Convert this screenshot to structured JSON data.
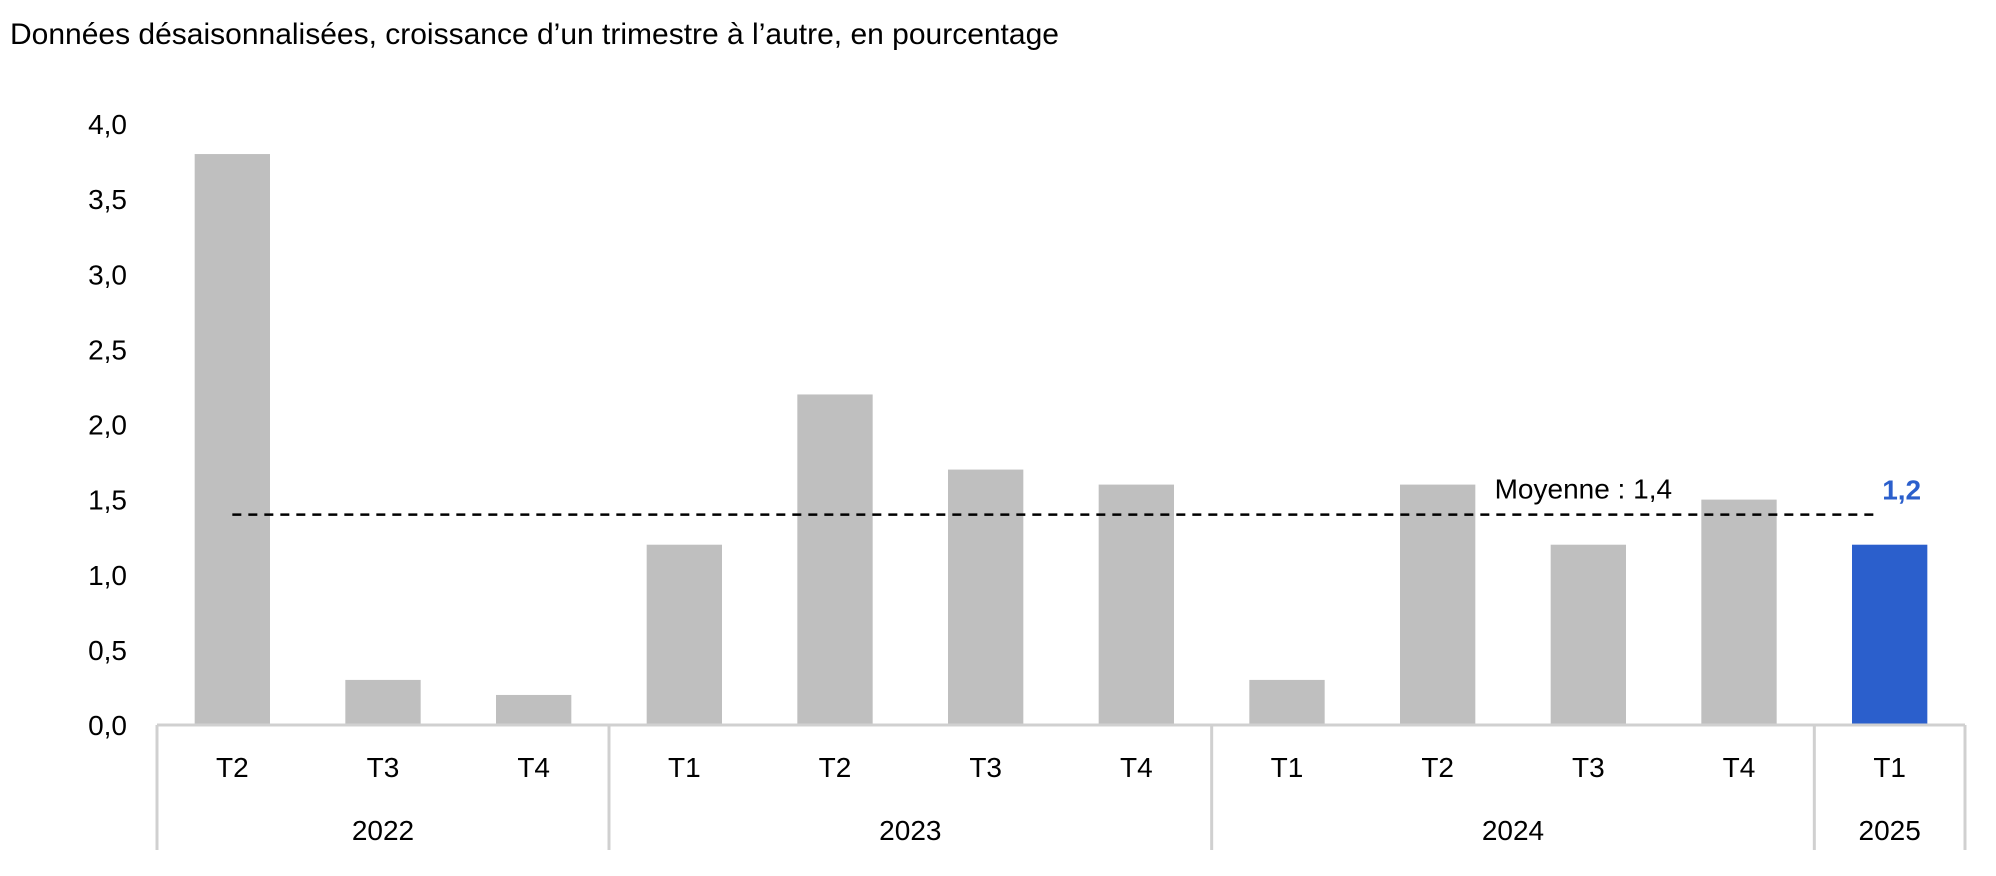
{
  "chart_data": {
    "type": "bar",
    "subtitle": "Données désaisonnalisées, croissance d’un trimestre à l’autre, en pourcentage",
    "categories": [
      "T2",
      "T3",
      "T4",
      "T1",
      "T2",
      "T3",
      "T4",
      "T1",
      "T2",
      "T3",
      "T4",
      "T1"
    ],
    "years": [
      {
        "label": "2022",
        "count": 3
      },
      {
        "label": "2023",
        "count": 4
      },
      {
        "label": "2024",
        "count": 4
      },
      {
        "label": "2025",
        "count": 1
      }
    ],
    "values": [
      3.8,
      0.3,
      0.2,
      1.2,
      2.2,
      1.7,
      1.6,
      0.3,
      1.6,
      1.2,
      1.5,
      1.2
    ],
    "ylim": [
      0,
      4
    ],
    "yticks": [
      0,
      0.5,
      1,
      1.5,
      2,
      2.5,
      3,
      3.5,
      4
    ],
    "ytick_labels": [
      "0,0",
      "0,5",
      "1,0",
      "1,5",
      "2,0",
      "2,5",
      "3,0",
      "3,5",
      "4,0"
    ],
    "average": {
      "value": 1.4,
      "label": "Moyenne : 1,4"
    },
    "highlight": {
      "index": 11,
      "label": "1,2"
    },
    "colors": {
      "bar": "#bfbfbf",
      "highlight": "#2b5fcc",
      "axis": "#d0d0d0",
      "average_line": "#000000"
    },
    "grid": false,
    "legend": "none"
  }
}
